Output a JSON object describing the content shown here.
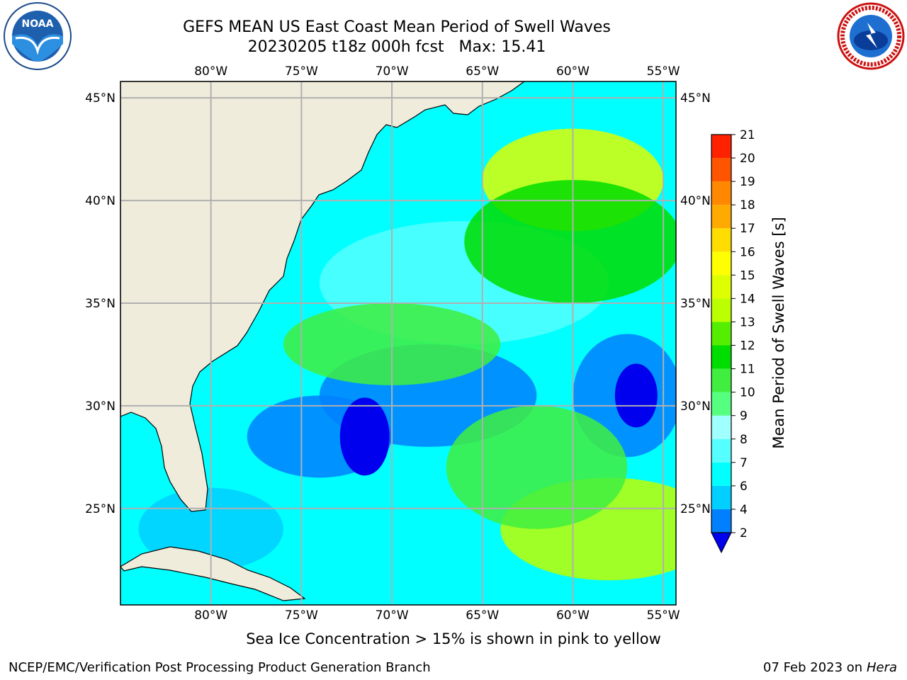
{
  "header": {
    "title": "GEFS MEAN US East Coast Mean Period of Swell Waves",
    "subtitle": "20230205 t18z 000h fcst   Max: 15.41"
  },
  "logos": {
    "noaa": {
      "text": "NOAA"
    },
    "nws": {
      "text": "NATIONAL WEATHER SERVICE"
    }
  },
  "map": {
    "lon_ticks": [
      "80°W",
      "75°W",
      "70°W",
      "65°W",
      "60°W",
      "55°W"
    ],
    "lat_ticks": [
      "45°N",
      "40°N",
      "35°N",
      "30°N",
      "25°N"
    ],
    "extent": {
      "lon": [
        -85,
        -54.3
      ],
      "lat": [
        20.3,
        45.8
      ]
    },
    "land_color": "#efecdc",
    "grid_color": "#b0b0b0"
  },
  "colorbar": {
    "label": "Mean Period of Swell Waves [s]",
    "levels": [
      2,
      4,
      6,
      7,
      8,
      9,
      10,
      11,
      12,
      13,
      14,
      15,
      16,
      17,
      18,
      19,
      20,
      21
    ],
    "level_labels": [
      "2",
      "4",
      "6",
      "7",
      "8",
      "9",
      "10",
      "11",
      "12",
      "13",
      "14",
      "15",
      "16",
      "17",
      "18",
      "19",
      "20",
      "21"
    ],
    "colors": [
      "#0080ff",
      "#00cfff",
      "#00ffff",
      "#55ffff",
      "#a0ffff",
      "#55ff80",
      "#40ee40",
      "#00dd00",
      "#55ee00",
      "#bbff00",
      "#ddff00",
      "#ffff00",
      "#ffdd00",
      "#ffaa00",
      "#ff8800",
      "#ff5500",
      "#ff2200",
      "#ff0000"
    ],
    "extend_below_color": "#0000ee"
  },
  "note": "Sea Ice Concentration > 15% is shown in pink to yellow",
  "footer": {
    "left": "NCEP/EMC/Verification Post Processing Product Generation Branch",
    "right_date": "07 Feb 2023 on",
    "right_host": "Hera"
  }
}
